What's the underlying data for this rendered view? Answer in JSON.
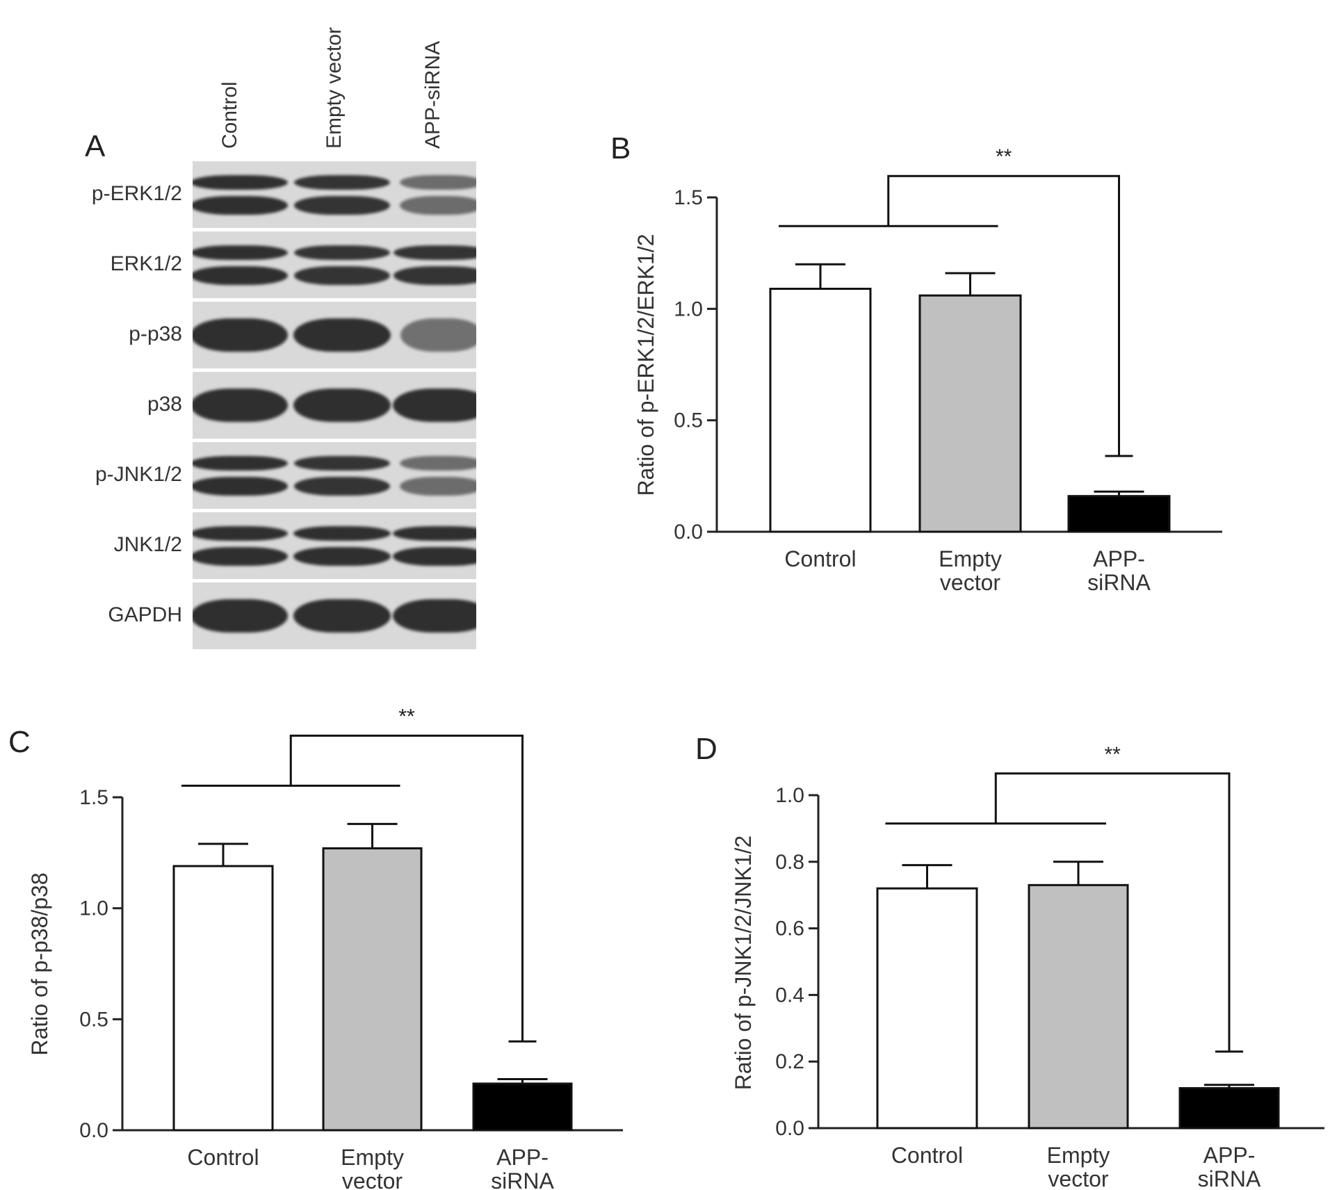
{
  "panel_a": {
    "letter": "A",
    "lanes": [
      "Control",
      "Empty vector",
      "APP-siRNA"
    ],
    "blots": [
      {
        "label": "p-ERK1/2",
        "bands": 2,
        "intensity": [
          1,
          0.95,
          0.45
        ]
      },
      {
        "label": "ERK1/2",
        "bands": 2,
        "intensity": [
          1,
          0.95,
          0.95
        ]
      },
      {
        "label": "p-p38",
        "bands": 1,
        "intensity": [
          1,
          1,
          0.4
        ]
      },
      {
        "label": "p38",
        "bands": 1,
        "intensity": [
          1,
          1,
          1
        ]
      },
      {
        "label": "p-JNK1/2",
        "bands": 2,
        "intensity": [
          1,
          0.95,
          0.45
        ]
      },
      {
        "label": "JNK1/2",
        "bands": 2,
        "intensity": [
          1,
          1,
          1
        ]
      },
      {
        "label": "GAPDH",
        "bands": 1,
        "intensity": [
          1,
          1,
          1
        ]
      }
    ]
  },
  "chart_data": [
    {
      "panel": "B",
      "type": "bar",
      "categories": [
        "Control",
        "Empty\nvector",
        "APP-\nsiRNA"
      ],
      "values": [
        1.09,
        1.06,
        0.16
      ],
      "errors": [
        0.11,
        0.1,
        0.02
      ],
      "colors": [
        "#ffffff",
        "#c0c0c0",
        "#000000"
      ],
      "ylabel": "Ratio of p-ERK1/2/ERK1/2",
      "ylim": [
        0,
        1.5
      ],
      "yticks": [
        "0.0",
        "0.5",
        "1.0",
        "1.5"
      ],
      "ytick_values": [
        0,
        0.5,
        1.0,
        1.5
      ],
      "significance": "**",
      "bracket_drop": 0.34
    },
    {
      "panel": "C",
      "type": "bar",
      "categories": [
        "Control",
        "Empty\nvector",
        "APP-\nsiRNA"
      ],
      "values": [
        1.19,
        1.27,
        0.21
      ],
      "errors": [
        0.1,
        0.11,
        0.02
      ],
      "colors": [
        "#ffffff",
        "#c0c0c0",
        "#000000"
      ],
      "ylabel": "Ratio of p-p38/p38",
      "ylim": [
        0,
        1.5
      ],
      "yticks": [
        "0.0",
        "0.5",
        "1.0",
        "1.5"
      ],
      "ytick_values": [
        0,
        0.5,
        1.0,
        1.5
      ],
      "significance": "**",
      "bracket_drop": 0.4
    },
    {
      "panel": "D",
      "type": "bar",
      "categories": [
        "Control",
        "Empty\nvector",
        "APP-\nsiRNA"
      ],
      "values": [
        0.72,
        0.73,
        0.12
      ],
      "errors": [
        0.07,
        0.07,
        0.01
      ],
      "colors": [
        "#ffffff",
        "#c0c0c0",
        "#000000"
      ],
      "ylabel": "Ratio of p-JNK1/2/JNK1/2",
      "ylim": [
        0,
        1.0
      ],
      "yticks": [
        "0.0",
        "0.2",
        "0.4",
        "0.6",
        "0.8",
        "1.0"
      ],
      "ytick_values": [
        0,
        0.2,
        0.4,
        0.6,
        0.8,
        1.0
      ],
      "significance": "**",
      "bracket_drop": 0.23
    }
  ]
}
